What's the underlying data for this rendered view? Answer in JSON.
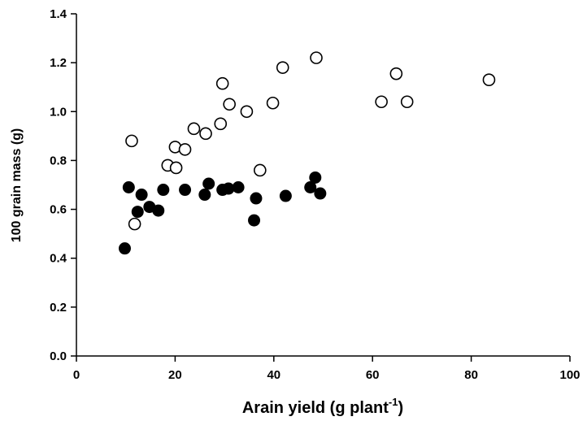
{
  "chart_data": {
    "type": "scatter",
    "title": "",
    "xlabel": "Arain yield (g plant",
    "xlabel_superscript": "-1",
    "xlabel_suffix": ")",
    "ylabel": "100 grain mass (g)",
    "xlim": [
      0,
      100
    ],
    "ylim": [
      0,
      1.4
    ],
    "x_ticks": [
      0,
      20,
      40,
      60,
      80,
      100
    ],
    "y_ticks": [
      "0.0",
      "0.2",
      "0.4",
      "0.6",
      "0.8",
      "1.0",
      "1.2",
      "1.4"
    ],
    "grid": false,
    "series": [
      {
        "marker": "open-circle",
        "color": "#000000",
        "points": [
          [
            11.2,
            0.88
          ],
          [
            11.8,
            0.54
          ],
          [
            18.5,
            0.78
          ],
          [
            20.0,
            0.855
          ],
          [
            20.2,
            0.77
          ],
          [
            22.0,
            0.845
          ],
          [
            23.8,
            0.93
          ],
          [
            26.2,
            0.91
          ],
          [
            29.2,
            0.95
          ],
          [
            29.6,
            1.115
          ],
          [
            31.0,
            1.03
          ],
          [
            34.5,
            1.0
          ],
          [
            37.2,
            0.76
          ],
          [
            39.8,
            1.035
          ],
          [
            41.8,
            1.18
          ],
          [
            48.6,
            1.22
          ],
          [
            61.8,
            1.04
          ],
          [
            64.8,
            1.155
          ],
          [
            67.0,
            1.04
          ],
          [
            83.6,
            1.13
          ]
        ]
      },
      {
        "marker": "filled-circle",
        "color": "#000000",
        "points": [
          [
            9.8,
            0.44
          ],
          [
            10.6,
            0.69
          ],
          [
            12.4,
            0.59
          ],
          [
            13.2,
            0.66
          ],
          [
            14.8,
            0.61
          ],
          [
            16.6,
            0.595
          ],
          [
            17.6,
            0.68
          ],
          [
            22.0,
            0.68
          ],
          [
            26.0,
            0.66
          ],
          [
            26.8,
            0.705
          ],
          [
            29.6,
            0.68
          ],
          [
            30.8,
            0.685
          ],
          [
            32.8,
            0.69
          ],
          [
            36.0,
            0.555
          ],
          [
            36.4,
            0.645
          ],
          [
            42.4,
            0.655
          ],
          [
            47.4,
            0.69
          ],
          [
            48.4,
            0.73
          ],
          [
            49.4,
            0.665
          ]
        ]
      }
    ]
  }
}
